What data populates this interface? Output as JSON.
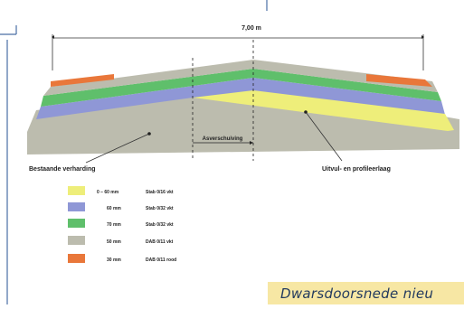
{
  "diagram": {
    "width_label": "7,00 m",
    "center_label": "Asverschuiving",
    "left_label": "Bestaande verharding",
    "right_label": "Uitvul- en profileerlaag",
    "legend": [
      {
        "thickness": "0 – 60 mm",
        "material": "Stab 0/16 vkt",
        "color": "#eeee7a",
        "key": "yellow"
      },
      {
        "thickness": "60 mm",
        "material": "Stab 0/32 vkt",
        "color": "#8f97d6",
        "key": "blue"
      },
      {
        "thickness": "70 mm",
        "material": "Stab 0/32 vkt",
        "color": "#5fbf6b",
        "key": "green"
      },
      {
        "thickness": "50 mm",
        "material": "DAB 0/11 vkt",
        "color": "#bcbcae",
        "key": "grey"
      },
      {
        "thickness": "30 mm",
        "material": "DAB 0/11 rood",
        "color": "#e9773a",
        "key": "orange"
      }
    ]
  },
  "caption": "Dwarsdoorsnede nieu"
}
